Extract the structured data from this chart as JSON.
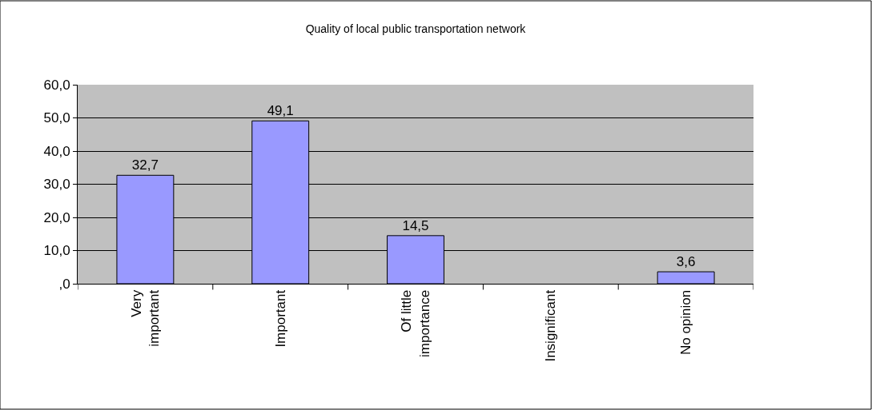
{
  "chart_data": {
    "type": "bar",
    "title": "Quality of local public transportation network",
    "categories": [
      "Very\nimportant",
      "Important",
      "Of little\nimportance",
      "Insignificant",
      "No opinion"
    ],
    "values": [
      32.7,
      49.1,
      14.5,
      null,
      3.6
    ],
    "value_labels": [
      "32,7",
      "49,1",
      "14,5",
      null,
      "3,6"
    ],
    "color": "#9999ff",
    "ylim": [
      0,
      60
    ],
    "yticks": [
      {
        "value": 0,
        "label": ",0"
      },
      {
        "value": 10,
        "label": "10,0"
      },
      {
        "value": 20,
        "label": "20,0"
      },
      {
        "value": 30,
        "label": "30,0"
      },
      {
        "value": 40,
        "label": "40,0"
      },
      {
        "value": 50,
        "label": "50,0"
      },
      {
        "value": 60,
        "label": "60,0"
      }
    ],
    "grid": "y"
  }
}
